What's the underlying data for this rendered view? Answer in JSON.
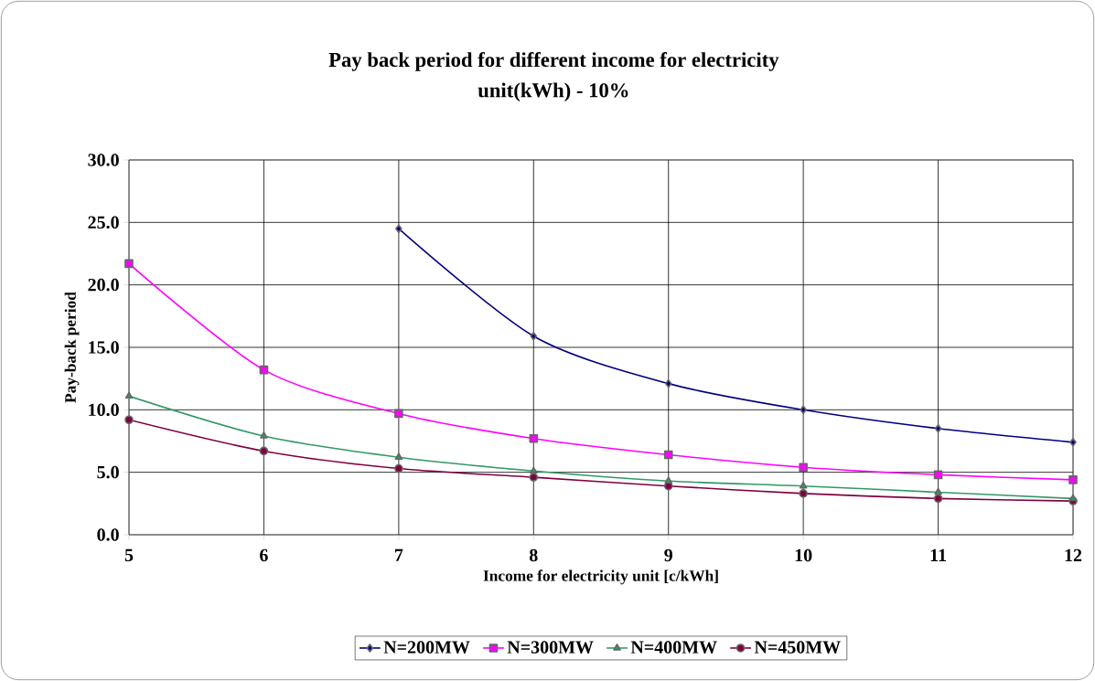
{
  "chart_data": {
    "type": "line",
    "title": "Pay back period for different  income for electricity\nunit(kWh) - 10%",
    "xlabel": "Income for electricity unit [c/kWh]",
    "ylabel": "Pay-back period",
    "x": [
      5,
      6,
      7,
      8,
      9,
      10,
      11,
      12
    ],
    "series": [
      {
        "name": "N=200MW",
        "color": "#000080",
        "marker": "diamond",
        "values": [
          null,
          null,
          24.5,
          15.9,
          12.1,
          10.0,
          8.5,
          7.4
        ]
      },
      {
        "name": "N=300MW",
        "color": "#ff00ff",
        "marker": "square",
        "values": [
          21.7,
          13.2,
          9.7,
          7.7,
          6.4,
          5.4,
          4.8,
          4.4
        ]
      },
      {
        "name": "N=400MW",
        "color": "#339966",
        "marker": "triangle",
        "values": [
          11.1,
          7.9,
          6.2,
          5.1,
          4.3,
          3.9,
          3.4,
          2.9
        ]
      },
      {
        "name": "N=450MW",
        "color": "#800040",
        "marker": "circle",
        "values": [
          9.2,
          6.7,
          5.3,
          4.6,
          3.9,
          3.3,
          2.9,
          2.7
        ]
      }
    ],
    "xlim": [
      5,
      12
    ],
    "xticks": [
      5,
      6,
      7,
      8,
      9,
      10,
      11,
      12
    ],
    "ylim": [
      0,
      30
    ],
    "yticks": [
      {
        "value": 0,
        "label": "0.0"
      },
      {
        "value": 5,
        "label": "5.0"
      },
      {
        "value": 10,
        "label": "10.0"
      },
      {
        "value": 15,
        "label": "15.0"
      },
      {
        "value": 20,
        "label": "20.0"
      },
      {
        "value": 25,
        "label": "25.0"
      },
      {
        "value": 30,
        "label": "30.0"
      }
    ],
    "grid": true,
    "legend": "bottom",
    "line_style": "solid"
  }
}
